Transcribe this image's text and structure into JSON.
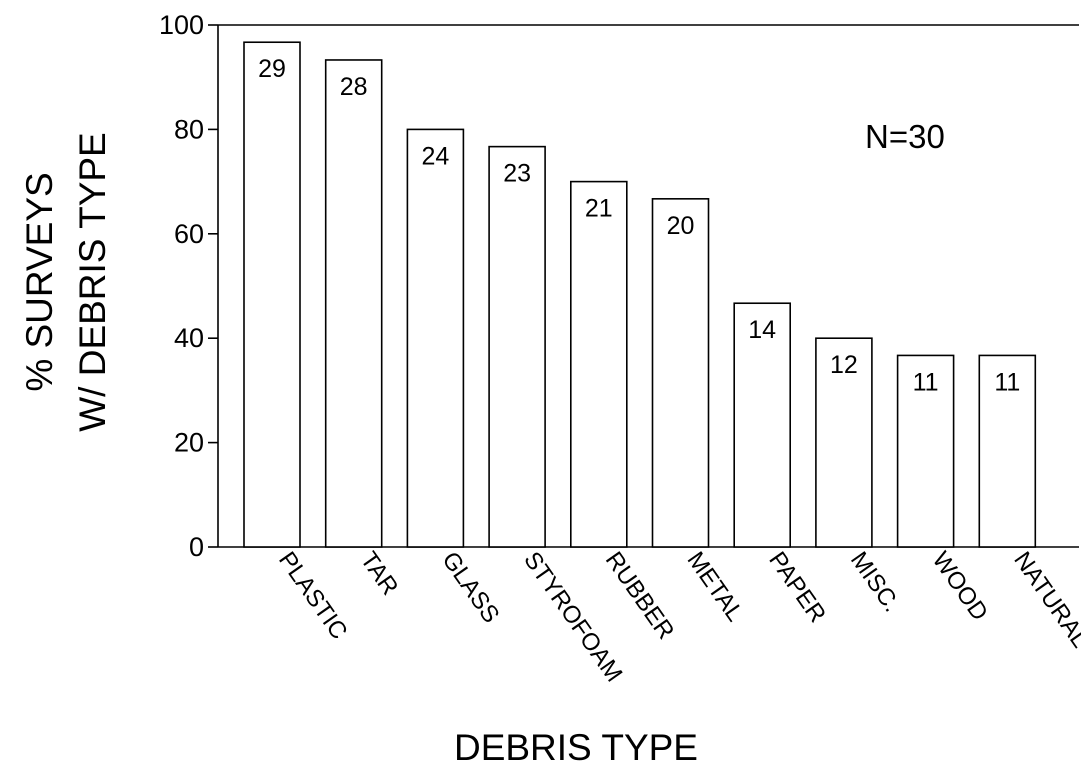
{
  "chart_data": {
    "type": "bar",
    "categories": [
      "PLASTIC",
      "TAR",
      "GLASS",
      "STYROFOAM",
      "RUBBER",
      "METAL",
      "PAPER",
      "MISC.",
      "WOOD",
      "NATURAL"
    ],
    "values": [
      96.7,
      93.3,
      80.0,
      76.7,
      70.0,
      66.7,
      46.7,
      40.0,
      36.7,
      36.7
    ],
    "data_labels": [
      "29",
      "28",
      "24",
      "23",
      "21",
      "20",
      "14",
      "12",
      "11",
      "11"
    ],
    "xlabel": "DEBRIS TYPE",
    "ylabel_lines": [
      "% SURVEYS",
      "W/ DEBRIS TYPE"
    ],
    "annotation": "N=30",
    "ylim": [
      0,
      100
    ],
    "yticks": [
      "0",
      "20",
      "40",
      "60",
      "80",
      "100"
    ],
    "grid": false,
    "legend": "none",
    "colors": {
      "bar_fill": "#ffffff",
      "bar_stroke": "#000000",
      "text": "#000000"
    }
  }
}
